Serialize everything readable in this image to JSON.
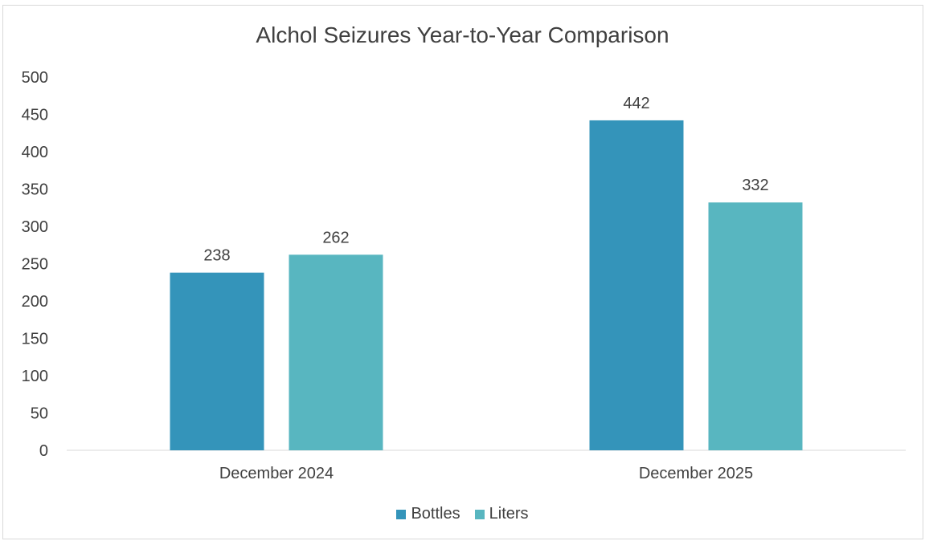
{
  "chart_data": {
    "type": "bar",
    "title": "Alchol Seizures Year-to-Year Comparison",
    "categories": [
      "December 2024",
      "December 2025"
    ],
    "series": [
      {
        "name": "Bottles",
        "values": [
          238,
          442
        ],
        "color": "#3494BA"
      },
      {
        "name": "Liters",
        "values": [
          262,
          332
        ],
        "color": "#58B6C0"
      }
    ],
    "y_ticks": [
      "0",
      "50",
      "100",
      "150",
      "200",
      "250",
      "300",
      "350",
      "400",
      "450",
      "500"
    ],
    "ylim": [
      0,
      500
    ],
    "grid": false,
    "legend_position": "bottom"
  }
}
